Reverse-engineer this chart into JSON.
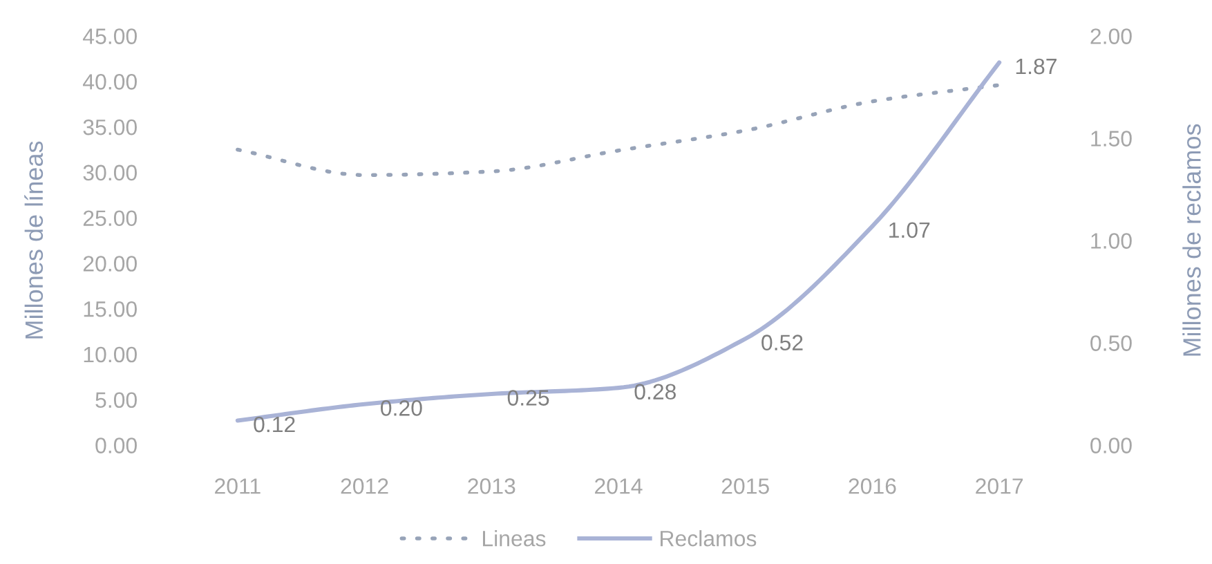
{
  "chart_data": {
    "type": "line",
    "categories": [
      "2011",
      "2012",
      "2013",
      "2014",
      "2015",
      "2016",
      "2017"
    ],
    "ylabel": "Millones de líneas",
    "y2label": "Millones de reclamos",
    "ylim": [
      0,
      45
    ],
    "yticks": [
      {
        "value": 0,
        "label": "0.00"
      },
      {
        "value": 5,
        "label": "5.00"
      },
      {
        "value": 10,
        "label": "10.00"
      },
      {
        "value": 15,
        "label": "15.00"
      },
      {
        "value": 20,
        "label": "20.00"
      },
      {
        "value": 25,
        "label": "25.00"
      },
      {
        "value": 30,
        "label": "30.00"
      },
      {
        "value": 35,
        "label": "35.00"
      },
      {
        "value": 40,
        "label": "40.00"
      },
      {
        "value": 45,
        "label": "45.00"
      }
    ],
    "y2lim": [
      0,
      2
    ],
    "y2ticks": [
      {
        "value": 0,
        "label": "0.00"
      },
      {
        "value": 0.5,
        "label": "0.50"
      },
      {
        "value": 1,
        "label": "1.00"
      },
      {
        "value": 1.5,
        "label": "1.50"
      },
      {
        "value": 2,
        "label": "2.00"
      }
    ],
    "series": [
      {
        "name": "Lineas",
        "color": "#97a3b8",
        "line_style": "dotted",
        "values": [
          32.5,
          29.7,
          30.1,
          32.4,
          34.6,
          37.8,
          39.6
        ]
      },
      {
        "name": "Reclamos",
        "color": "#a9b3d6",
        "axis": "y2",
        "line_style": "solid",
        "values": [
          0.12,
          0.2,
          0.25,
          0.28,
          0.52,
          1.07,
          1.87
        ],
        "value_labels": [
          "0.12",
          "0.20",
          "0.25",
          "0.28",
          "0.52",
          "1.07",
          "1.87"
        ]
      }
    ],
    "grid": false,
    "legend": "bottom"
  }
}
